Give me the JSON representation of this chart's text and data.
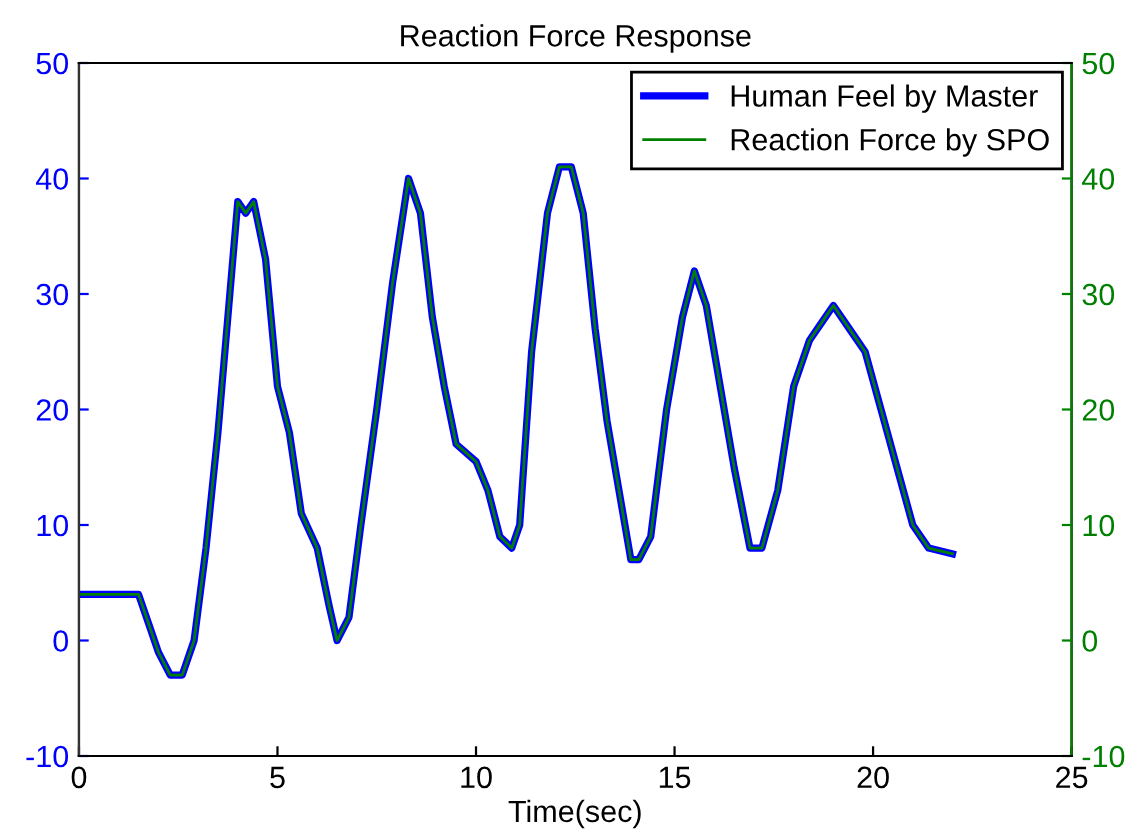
{
  "chart_data": {
    "type": "line",
    "title": "Reaction Force Response",
    "xlabel": "Time(sec)",
    "x": [
      0,
      0.5,
      1,
      1.5,
      1.8,
      2,
      2.3,
      2.6,
      2.9,
      3.2,
      3.5,
      3.8,
      4,
      4.2,
      4.4,
      4.7,
      5,
      5.3,
      5.6,
      6,
      6.3,
      6.5,
      6.8,
      7.1,
      7.5,
      7.9,
      8.3,
      8.6,
      8.9,
      9.2,
      9.5,
      10,
      10.3,
      10.6,
      10.9,
      11.1,
      11.4,
      11.8,
      12.1,
      12.4,
      12.7,
      13,
      13.3,
      13.6,
      13.9,
      14.1,
      14.4,
      14.8,
      15.2,
      15.5,
      15.8,
      16.1,
      16.5,
      16.9,
      17.2,
      17.6,
      18,
      18.4,
      18.8,
      19,
      19.4,
      19.8,
      20.2,
      20.6,
      21,
      21.4,
      22
    ],
    "series": [
      {
        "name": "Human Feel by Master",
        "color": "#0000ff",
        "values": [
          4,
          4,
          4,
          4,
          1,
          -1,
          -3,
          -3,
          0,
          8,
          18,
          30,
          38,
          37,
          38,
          33,
          22,
          18,
          11,
          8,
          3,
          0,
          2,
          10,
          20,
          31,
          40,
          37,
          28,
          22,
          17,
          15.5,
          13,
          9,
          8,
          10,
          25,
          37,
          41,
          41,
          37,
          27,
          19,
          13,
          7,
          7,
          9,
          20,
          28,
          32,
          29,
          23,
          15,
          8,
          8,
          13,
          22,
          26,
          28,
          29,
          27,
          25,
          20,
          15,
          10,
          8,
          7.5
        ]
      },
      {
        "name": "Reaction Force by SPO",
        "color": "#008000",
        "values": [
          4,
          4,
          4,
          4,
          1,
          -1,
          -3,
          -3,
          0,
          8,
          18,
          30,
          38,
          37,
          38,
          33,
          22,
          18,
          11,
          8,
          3,
          0,
          2,
          10,
          20,
          31,
          40,
          37,
          28,
          22,
          17,
          15.5,
          13,
          9,
          8,
          10,
          25,
          37,
          41,
          41,
          37,
          27,
          19,
          13,
          7,
          7,
          9,
          20,
          28,
          32,
          29,
          23,
          15,
          8,
          8,
          13,
          22,
          26,
          28,
          29,
          27,
          25,
          20,
          15,
          10,
          8,
          7.5
        ],
        "axis": "y2"
      }
    ],
    "xlim": [
      0,
      25
    ],
    "xticks": [
      0,
      5,
      10,
      15,
      20,
      25
    ],
    "ylim": [
      -10,
      50
    ],
    "yticks": [
      -10,
      0,
      10,
      20,
      30,
      40,
      50
    ],
    "y2lim": [
      -10,
      50
    ],
    "y2ticks": [
      -10,
      0,
      10,
      20,
      30,
      40,
      50
    ],
    "legend": "top right",
    "grid": false,
    "line_style": "solid",
    "marker": "none"
  }
}
